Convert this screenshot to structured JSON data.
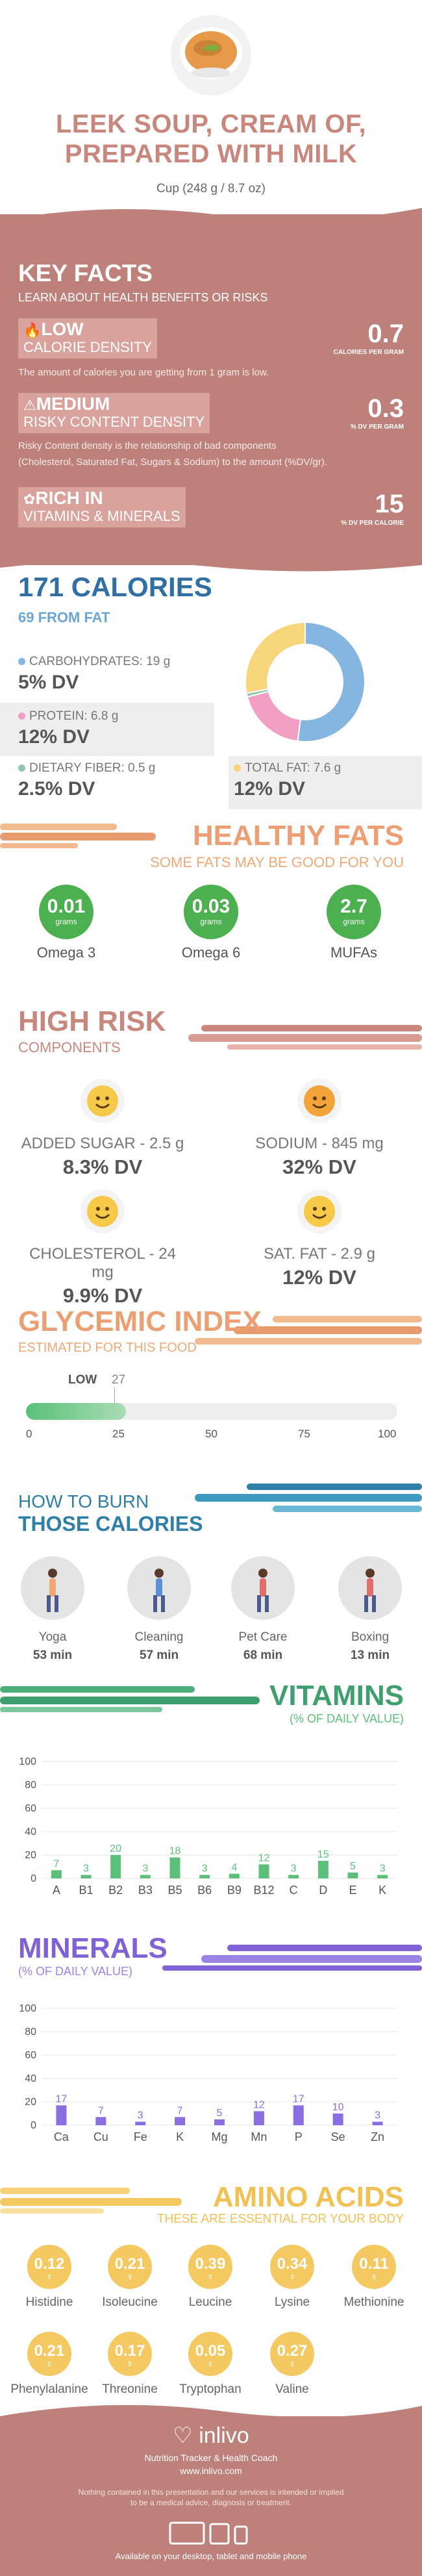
{
  "header": {
    "title_line1": "LEEK SOUP, CREAM OF,",
    "title_line2": "PREPARED WITH MILK",
    "serving": "Cup (248 g / 8.7 oz)"
  },
  "key_facts": {
    "title": "KEY FACTS",
    "subtitle": "LEARN ABOUT HEALTH BENEFITS OR RISKS",
    "low": {
      "word": "LOW",
      "label": "CALORIE DENSITY",
      "text": "The amount of calories you are getting from 1 gram is low.",
      "value": "0.7",
      "unit": "CALORIES PER GRAM"
    },
    "medium": {
      "word": "MEDIUM",
      "label": "RISKY CONTENT DENSITY",
      "text1": "Risky Content density is the relationship of bad components",
      "text2": "(Cholesterol, Saturated Fat, Sugars & Sodium) to the amount (%DV/gr).",
      "value": "0.3",
      "unit": "% DV PER GRAM"
    },
    "rich": {
      "word": "RICH IN",
      "label": "VITAMINS & MINERALS",
      "value": "15",
      "unit": "% DV PER CALORIE"
    }
  },
  "calories": {
    "title": "171 CALORIES",
    "from_fat": "69 FROM FAT",
    "carbs": {
      "label": "CARBOHYDRATES: 19 g",
      "dv": "5% DV",
      "color": "#85b6e0"
    },
    "protein": {
      "label": "PROTEIN: 6.8 g",
      "dv": "12% DV",
      "color": "#f29fc6"
    },
    "fiber": {
      "label": "DIETARY FIBER: 0.5 g",
      "dv": "2.5% DV",
      "color": "#8bc9a8"
    },
    "fat": {
      "label": "TOTAL FAT: 7.6 g",
      "dv": "12% DV",
      "color": "#f7d57a"
    },
    "donut": [
      {
        "name": "carbs",
        "value": 52,
        "color": "#85b6e0"
      },
      {
        "name": "protein",
        "value": 19,
        "color": "#f29fc6"
      },
      {
        "name": "fiber",
        "value": 1,
        "color": "#8bc9a8"
      },
      {
        "name": "fat",
        "value": 28,
        "color": "#f7d57a"
      }
    ]
  },
  "healthy_fats": {
    "title": "HEALTHY FATS",
    "subtitle": "SOME FATS MAY BE GOOD FOR YOU",
    "items": [
      {
        "value": "0.01",
        "unit": "grams",
        "name": "Omega 3"
      },
      {
        "value": "0.03",
        "unit": "grams",
        "name": "Omega 6"
      },
      {
        "value": "2.7",
        "unit": "grams",
        "name": "MUFAs"
      }
    ]
  },
  "high_risk": {
    "title": "HIGH RISK",
    "subtitle": "COMPONENTS",
    "items": [
      {
        "label": "ADDED SUGAR - 2.5 g",
        "dv": "8.3% DV"
      },
      {
        "label": "SODIUM - 845 mg",
        "dv": "32% DV"
      },
      {
        "label": "CHOLESTEROL - 24 mg",
        "dv": "9.9% DV"
      },
      {
        "label": "SAT. FAT - 2.9 g",
        "dv": "12% DV"
      }
    ]
  },
  "glycemic": {
    "title": "GLYCEMIC INDEX",
    "subtitle": "ESTIMATED FOR THIS FOOD",
    "level": "LOW",
    "value": 27,
    "value_label": "27",
    "ticks": [
      "0",
      "25",
      "50",
      "75",
      "100"
    ]
  },
  "burn": {
    "title1": "HOW TO BURN",
    "title2": "THOSE CALORIES",
    "items": [
      {
        "name": "Yoga",
        "minutes": "53 min"
      },
      {
        "name": "Cleaning",
        "minutes": "57 min"
      },
      {
        "name": "Pet Care",
        "minutes": "68 min"
      },
      {
        "name": "Boxing",
        "minutes": "13 min"
      }
    ]
  },
  "vitamins": {
    "title": "VITAMINS",
    "subtitle": "(% OF DAILY VALUE)",
    "chart_data": {
      "type": "bar",
      "categories": [
        "A",
        "B1",
        "B2",
        "B3",
        "B5",
        "B6",
        "B9",
        "B12",
        "C",
        "D",
        "E",
        "K"
      ],
      "values": [
        7,
        3,
        20,
        3,
        18,
        3,
        4,
        12,
        3,
        15,
        5,
        3
      ],
      "ylim": [
        0,
        100
      ],
      "yticks": [
        "0",
        "20",
        "40",
        "60",
        "80",
        "100"
      ],
      "color": "#5cbf7a"
    }
  },
  "minerals": {
    "title": "MINERALS",
    "subtitle": "(% OF DAILY VALUE)",
    "chart_data": {
      "type": "bar",
      "categories": [
        "Ca",
        "Cu",
        "Fe",
        "K",
        "Mg",
        "Mn",
        "P",
        "Se",
        "Zn"
      ],
      "values": [
        17,
        7,
        3,
        7,
        5,
        12,
        17,
        10,
        3
      ],
      "ylim": [
        0,
        100
      ],
      "yticks": [
        "0",
        "20",
        "40",
        "60",
        "80",
        "100"
      ],
      "color": "#8a6ee0"
    }
  },
  "amino": {
    "title": "AMINO ACIDS",
    "subtitle": "THESE ARE ESSENTIAL FOR YOUR BODY",
    "items": [
      {
        "value": "0.12",
        "unit": "g",
        "name": "Histidine"
      },
      {
        "value": "0.21",
        "unit": "g",
        "name": "Isoleucine"
      },
      {
        "value": "0.39",
        "unit": "g",
        "name": "Leucine"
      },
      {
        "value": "0.34",
        "unit": "g",
        "name": "Lysine"
      },
      {
        "value": "0.11",
        "unit": "g",
        "name": "Methionine"
      },
      {
        "value": "0.21",
        "unit": "g",
        "name": "Phenylalanine"
      },
      {
        "value": "0.17",
        "unit": "g",
        "name": "Threonine"
      },
      {
        "value": "0.05",
        "unit": "g",
        "name": "Tryptophan"
      },
      {
        "value": "0.27",
        "unit": "g",
        "name": "Valine"
      }
    ]
  },
  "footer": {
    "brand": "inlivo",
    "tagline": "Nutrition Tracker & Health Coach",
    "url": "www.inlivo.com",
    "disclaimer1": "Nothing contained in this presentation and our services is intended or implied",
    "disclaimer2": "to be a medical advice, diagnosis or treatment.",
    "available": "Available on your desktop, tablet and mobile phone"
  }
}
